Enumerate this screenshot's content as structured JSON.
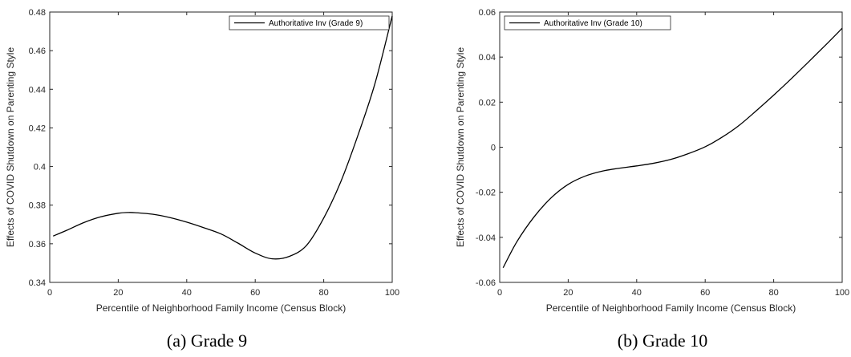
{
  "chart_data": [
    {
      "type": "line",
      "caption": "(a) Grade 9",
      "xlabel": "Percentile of Neighborhood Family Income (Census Block)",
      "ylabel": "Effects of COVID Shutdown on Parenting Style",
      "xlim": [
        0,
        100
      ],
      "ylim": [
        0.34,
        0.48
      ],
      "xticks": [
        0,
        20,
        40,
        60,
        80,
        100
      ],
      "yticks": [
        0.34,
        0.36,
        0.38,
        0.4,
        0.42,
        0.44,
        0.46,
        0.48
      ],
      "ytick_labels": [
        "0.34",
        "0.36",
        "0.38",
        "0.4",
        "0.42",
        "0.44",
        "0.46",
        "0.48"
      ],
      "legend": "top-right",
      "grid": false,
      "series": [
        {
          "name": "Authoritative Inv (Grade 9)",
          "color": "#000000",
          "x": [
            1,
            5,
            10,
            15,
            20,
            23,
            25,
            30,
            35,
            40,
            45,
            50,
            55,
            60,
            65,
            70,
            75,
            80,
            85,
            90,
            95,
            100
          ],
          "y": [
            0.364,
            0.367,
            0.371,
            0.374,
            0.3758,
            0.3762,
            0.3761,
            0.3753,
            0.3736,
            0.3712,
            0.3683,
            0.3651,
            0.3603,
            0.3552,
            0.3522,
            0.3535,
            0.3592,
            0.3733,
            0.3922,
            0.4162,
            0.4432,
            0.478
          ]
        }
      ]
    },
    {
      "type": "line",
      "caption": "(b) Grade 10",
      "xlabel": "Percentile of Neighborhood Family Income (Census Block)",
      "ylabel": "Effects of COVID Shutdown on Parenting Style",
      "xlim": [
        0,
        100
      ],
      "ylim": [
        -0.06,
        0.06
      ],
      "xticks": [
        0,
        20,
        40,
        60,
        80,
        100
      ],
      "yticks": [
        -0.06,
        -0.04,
        -0.02,
        0,
        0.02,
        0.04,
        0.06
      ],
      "ytick_labels": [
        "-0.06",
        "-0.04",
        "-0.02",
        "0",
        "0.02",
        "0.04",
        "0.06"
      ],
      "legend": "top-left",
      "grid": false,
      "series": [
        {
          "name": "Authoritative Inv (Grade 10)",
          "color": "#000000",
          "x": [
            1,
            5,
            10,
            15,
            20,
            25,
            30,
            35,
            40,
            45,
            50,
            55,
            60,
            65,
            70,
            75,
            80,
            85,
            90,
            95,
            100
          ],
          "y": [
            -0.0535,
            -0.042,
            -0.031,
            -0.0225,
            -0.0165,
            -0.0128,
            -0.0106,
            -0.0093,
            -0.0083,
            -0.0071,
            -0.0054,
            -0.0029,
            0.0002,
            0.0045,
            0.0098,
            0.0163,
            0.0231,
            0.0302,
            0.0376,
            0.0451,
            0.0528
          ]
        }
      ]
    }
  ]
}
